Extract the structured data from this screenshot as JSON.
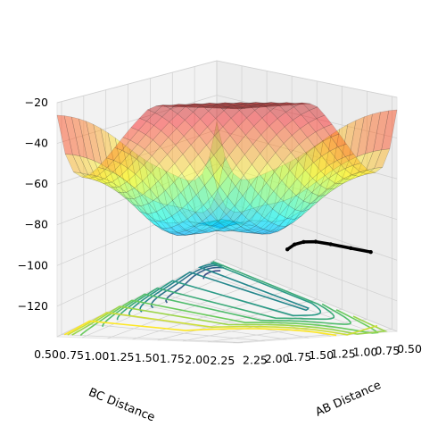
{
  "chart_data": {
    "type": "surface3d",
    "title": "",
    "xlabel": "AB Distance",
    "ylabel": "BC Distance",
    "zlabel": "",
    "x_ticks": [
      "0.50",
      "0.75",
      "1.00",
      "1.25",
      "1.50",
      "1.75",
      "2.00",
      "2.25"
    ],
    "y_ticks": [
      "0.50",
      "0.75",
      "1.00",
      "1.25",
      "1.50",
      "1.75",
      "2.00",
      "2.25"
    ],
    "z_ticks": [
      "−120",
      "−100",
      "−80",
      "−60",
      "−40",
      "−20"
    ],
    "x_range": [
      0.5,
      2.3
    ],
    "y_range": [
      0.5,
      2.3
    ],
    "z_range": [
      -135,
      -20
    ],
    "surface_colormap": "jet",
    "contour_colormap": "viridis",
    "colors": {
      "pane": "#f2f2f2",
      "grid": "#d0d0d0",
      "trajectory": "#000000",
      "hot": "#e2584a",
      "cold": "#3a3ad8"
    },
    "series": [
      {
        "kind": "trajectory",
        "points": [
          {
            "x": 0.72,
            "y": 1.4,
            "z": -108
          },
          {
            "x": 0.73,
            "y": 1.48,
            "z": -104
          },
          {
            "x": 0.74,
            "y": 1.58,
            "z": -101
          },
          {
            "x": 0.74,
            "y": 1.7,
            "z": -99
          },
          {
            "x": 0.74,
            "y": 1.85,
            "z": -98
          },
          {
            "x": 0.74,
            "y": 2.05,
            "z": -97
          },
          {
            "x": 0.74,
            "y": 2.25,
            "z": -96
          }
        ]
      }
    ]
  }
}
